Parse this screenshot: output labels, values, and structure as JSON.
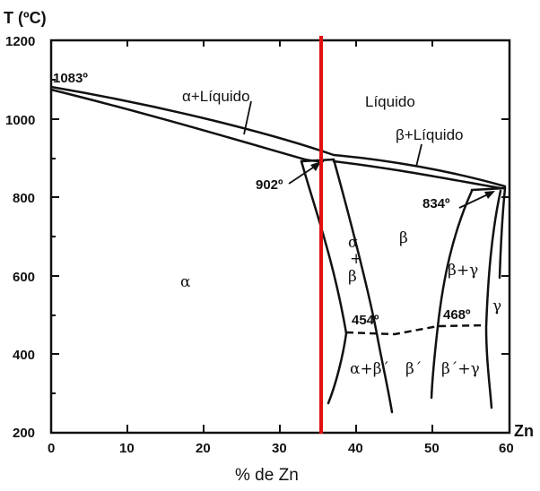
{
  "diagram": {
    "y_axis_label": "T (ºC)",
    "x_axis_label": "% de Zn",
    "x_end_label": "Zn",
    "y_ticks": [
      "1200",
      "1000",
      "800",
      "600",
      "400",
      "200"
    ],
    "x_ticks": [
      "0",
      "10",
      "20",
      "30",
      "40",
      "50",
      "60"
    ],
    "regions": {
      "alpha": "α",
      "alpha_liquid": "α+Líquido",
      "liquid": "Líquido",
      "beta_liquid": "β+Líquido",
      "alpha_beta_line1": "α",
      "alpha_beta_line2": "+",
      "alpha_beta_line3": "β",
      "beta": "β",
      "beta_gamma": "β+γ",
      "gamma": "γ",
      "alpha_betaprime": "α+β´",
      "betaprime": "β´",
      "betaprime_gamma": "β´+γ"
    },
    "temperatures": {
      "t1083": "1083º",
      "t902": "902º",
      "t834": "834º",
      "t454": "454º",
      "t468": "468º"
    },
    "marker_line_color": "#e01010"
  }
}
